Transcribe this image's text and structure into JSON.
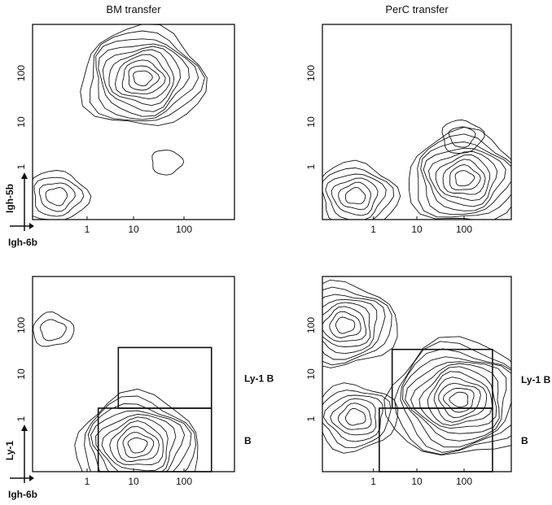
{
  "chart_data": [
    {
      "type": "contour",
      "title": "BM transfer",
      "xlabel": "Igh-6b",
      "ylabel": "Igh-5b",
      "x_ticks": [
        "1",
        "10",
        "100"
      ],
      "y_ticks": [
        "1",
        "10",
        "100"
      ],
      "log_scale": true,
      "xlim": [
        0.1,
        1000
      ],
      "ylim": [
        0.1,
        1000
      ],
      "gates": [],
      "populations": [
        {
          "x": 15,
          "y": 80,
          "levels": 10
        },
        {
          "x": 0.3,
          "y": 0.3,
          "levels": 4
        },
        {
          "x": 45,
          "y": 1.5,
          "levels": 1
        }
      ]
    },
    {
      "type": "contour",
      "title": "PerC transfer",
      "xlabel": "",
      "ylabel": "",
      "x_ticks": [
        "1",
        "10",
        "100"
      ],
      "y_ticks": [
        "1",
        "10",
        "100"
      ],
      "log_scale": true,
      "xlim": [
        0.1,
        1000
      ],
      "ylim": [
        0.1,
        1000
      ],
      "gates": [],
      "populations": [
        {
          "x": 100,
          "y": 0.7,
          "levels": 9
        },
        {
          "x": 0.5,
          "y": 0.3,
          "levels": 6
        },
        {
          "x": 90,
          "y": 5,
          "levels": 2
        }
      ]
    },
    {
      "type": "contour",
      "title": "",
      "xlabel": "Igh-6b",
      "ylabel": "Ly-1",
      "x_ticks": [
        "1",
        "10",
        "100"
      ],
      "y_ticks": [
        "1",
        "10",
        "100"
      ],
      "log_scale": true,
      "xlim": [
        0.1,
        1000
      ],
      "ylim": [
        0.1,
        1000
      ],
      "gates": [
        {
          "label": "Ly-1 B",
          "x": [
            5,
            350
          ],
          "y": [
            2,
            35
          ]
        },
        {
          "label": "B",
          "x": [
            2,
            350
          ],
          "y": [
            0.1,
            2
          ]
        }
      ],
      "populations": [
        {
          "x": 12,
          "y": 0.35,
          "levels": 10
        },
        {
          "x": 0.25,
          "y": 80,
          "levels": 2
        }
      ]
    },
    {
      "type": "contour",
      "title": "",
      "xlabel": "",
      "ylabel": "",
      "x_ticks": [
        "1",
        "10",
        "100"
      ],
      "y_ticks": [
        "1",
        "10",
        "100"
      ],
      "log_scale": true,
      "xlim": [
        0.1,
        1000
      ],
      "ylim": [
        0.1,
        1000
      ],
      "gates": [
        {
          "label": "Ly-1 B",
          "x": [
            3,
            400
          ],
          "y": [
            2,
            32
          ]
        },
        {
          "label": "B",
          "x": [
            1.6,
            400
          ],
          "y": [
            0.1,
            2
          ]
        }
      ],
      "populations": [
        {
          "x": 80,
          "y": 3,
          "levels": 12
        },
        {
          "x": 0.3,
          "y": 100,
          "levels": 8
        },
        {
          "x": 0.5,
          "y": 1.3,
          "levels": 6
        }
      ]
    }
  ]
}
